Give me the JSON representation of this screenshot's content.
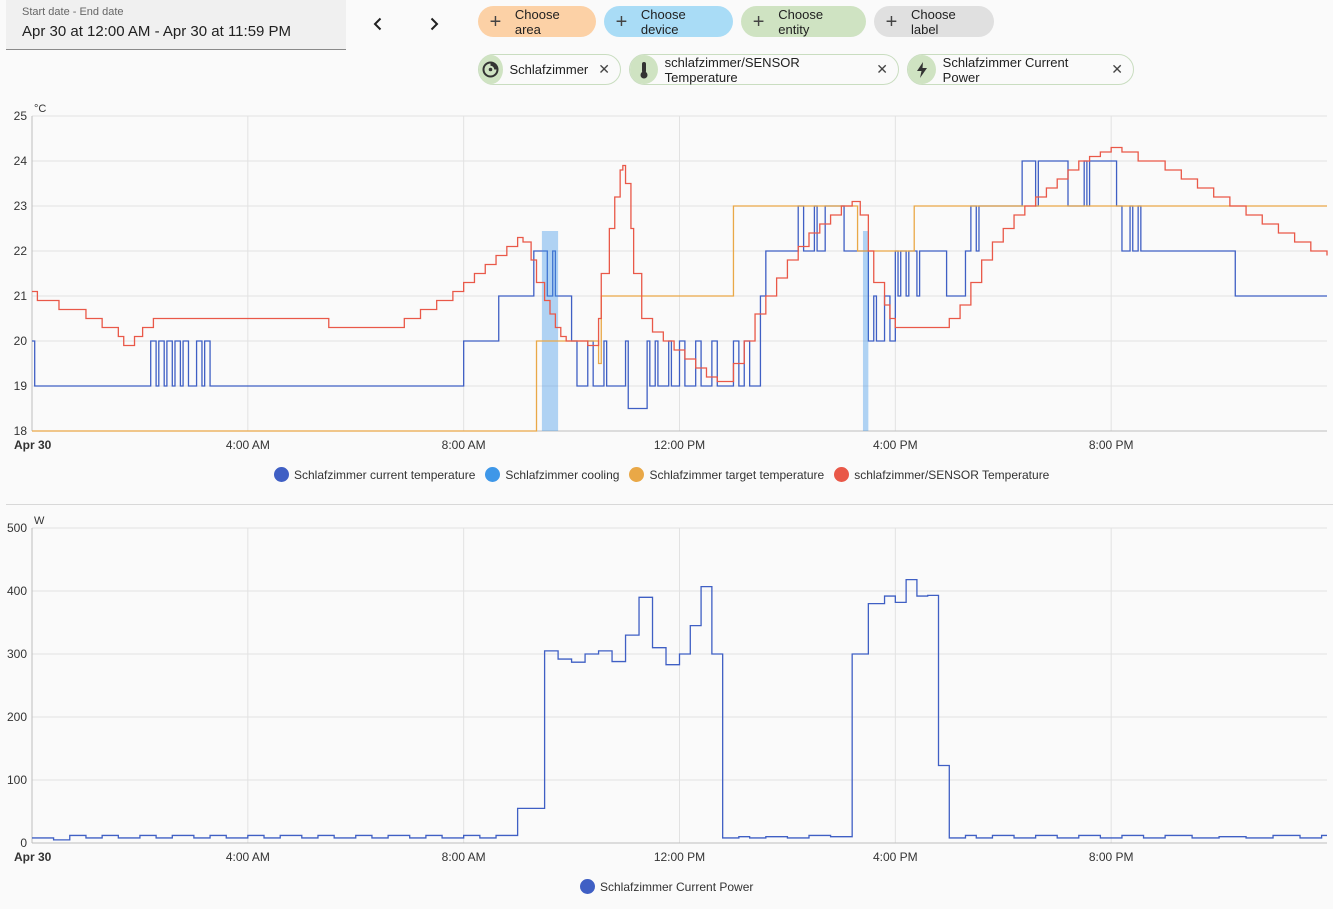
{
  "date_range": {
    "label": "Start date - End date",
    "value": "Apr 30 at 12:00 AM - Apr 30 at 11:59 PM"
  },
  "nav": {
    "prev_icon": "chevron-left-icon",
    "next_icon": "chevron-right-icon"
  },
  "choose_buttons": [
    {
      "label": "Choose area",
      "color": "#fcd1a6"
    },
    {
      "label": "Choose device",
      "color": "#a9dcf6"
    },
    {
      "label": "Choose entity",
      "color": "#cfe3c2"
    },
    {
      "label": "Choose label",
      "color": "#e0e0e0"
    }
  ],
  "selected_targets": [
    {
      "label": "Schlafzimmer",
      "icon": "thermostat-icon"
    },
    {
      "label": "schlafzimmer/SENSOR Temperature",
      "icon": "thermometer-icon"
    },
    {
      "label": "Schlafzimmer Current Power",
      "icon": "lightning-icon"
    }
  ],
  "chart_data": [
    {
      "type": "line",
      "title": "",
      "ylabel": "°C",
      "ylim": [
        18,
        25
      ],
      "xlim": [
        0,
        24
      ],
      "x_ticks": [
        "Apr 30",
        "4:00 AM",
        "8:00 AM",
        "12:00 PM",
        "4:00 PM",
        "8:00 PM"
      ],
      "x_tick_hours": [
        0,
        4,
        8,
        12,
        16,
        20
      ],
      "y_ticks": [
        18,
        19,
        20,
        21,
        22,
        23,
        24,
        25
      ],
      "grid": true,
      "legend_position": "bottom",
      "series": [
        {
          "name": "Schlafzimmer current temperature",
          "color": "#3f5fc4",
          "x": [
            0,
            0.05,
            2.15,
            2.2,
            2.3,
            2.35,
            2.45,
            2.5,
            2.6,
            2.65,
            2.75,
            2.8,
            2.9,
            3.0,
            3.05,
            3.15,
            3.2,
            3.3,
            3.35,
            7.9,
            8.0,
            8.6,
            8.65,
            8.75,
            9.2,
            9.3,
            9.5,
            9.55,
            9.65,
            9.7,
            10.0,
            10.1,
            10.3,
            10.4,
            10.6,
            10.65,
            11.0,
            11.05,
            11.4,
            11.45,
            11.55,
            11.6,
            11.8,
            11.85,
            12.0,
            12.1,
            12.3,
            12.4,
            12.6,
            12.7,
            13.0,
            13.1,
            13.2,
            13.3,
            13.5,
            13.6,
            13.75,
            14.2,
            14.3,
            14.5,
            14.55,
            14.7,
            14.75,
            15.0,
            15.05,
            15.5,
            15.6,
            15.65,
            15.8,
            15.9,
            16.0,
            16.05,
            16.1,
            16.2,
            16.25,
            16.4,
            16.45,
            16.9,
            16.95,
            17.3,
            17.4,
            17.5,
            17.55,
            18.3,
            18.35,
            18.6,
            18.65,
            18.9,
            19.1,
            19.2,
            19.5,
            19.55,
            19.6,
            19.7,
            20.1,
            20.2,
            20.35,
            20.4,
            20.5,
            20.55,
            22.2,
            22.3,
            24
          ],
          "y": [
            20,
            19,
            19,
            20,
            19,
            20,
            19,
            20,
            19,
            20,
            19,
            20,
            19,
            19,
            20,
            19,
            20,
            19,
            19,
            19,
            20,
            20,
            21,
            21,
            21,
            22,
            22,
            21,
            22,
            21,
            20,
            19,
            20,
            19,
            20,
            19,
            20,
            18.5,
            20,
            19,
            20,
            19,
            20,
            19,
            20,
            19,
            20,
            19,
            20,
            19,
            20,
            19,
            20,
            19,
            21,
            22,
            22,
            23,
            22,
            23,
            22,
            23,
            23,
            23,
            22,
            20,
            21,
            20,
            21,
            20,
            22,
            21,
            22,
            21,
            22,
            21,
            22,
            22,
            21,
            22,
            23,
            22,
            23,
            23,
            24,
            23,
            24,
            24,
            24,
            23,
            24,
            23,
            24,
            24,
            23,
            22,
            23,
            22,
            23,
            22,
            22,
            21,
            21
          ]
        },
        {
          "name": "Schlafzimmer cooling",
          "color": "#3e97e8",
          "bands": [
            [
              9.45,
              9.75
            ],
            [
              15.4,
              15.5
            ]
          ]
        },
        {
          "name": "Schlafzimmer target temperature",
          "color": "#e9a847",
          "x": [
            0,
            9.3,
            9.35,
            10.45,
            10.5,
            10.55,
            12.9,
            13.0,
            15.25,
            15.3,
            16.3,
            16.35,
            24
          ],
          "y": [
            18,
            18,
            20,
            20,
            19.5,
            21,
            21,
            23,
            23,
            22,
            22,
            23,
            23
          ]
        },
        {
          "name": "schlafzimmer/SENSOR Temperature",
          "color": "#e95848",
          "x": [
            0,
            0.1,
            0.5,
            1.0,
            1.3,
            1.6,
            1.7,
            1.9,
            2.05,
            2.25,
            2.4,
            2.7,
            3.0,
            4.0,
            5.0,
            5.5,
            6.0,
            6.5,
            6.9,
            7.2,
            7.5,
            7.8,
            8.0,
            8.2,
            8.4,
            8.6,
            8.8,
            9.0,
            9.1,
            9.25,
            9.35,
            9.5,
            9.6,
            9.7,
            9.8,
            9.9,
            10.1,
            10.3,
            10.5,
            10.55,
            10.7,
            10.8,
            10.9,
            10.95,
            11.0,
            11.1,
            11.15,
            11.3,
            11.5,
            11.7,
            11.9,
            12.1,
            12.3,
            12.5,
            12.7,
            12.9,
            13.0,
            13.2,
            13.4,
            13.6,
            13.8,
            14.0,
            14.2,
            14.4,
            14.6,
            14.8,
            15.0,
            15.2,
            15.35,
            15.5,
            15.6,
            15.8,
            15.9,
            16.0,
            16.5,
            17.0,
            17.2,
            17.4,
            17.6,
            17.8,
            18.0,
            18.2,
            18.4,
            18.6,
            18.8,
            19.0,
            19.2,
            19.4,
            19.6,
            19.8,
            20.0,
            20.2,
            20.5,
            21.0,
            21.3,
            21.6,
            21.9,
            22.2,
            22.5,
            22.8,
            23.1,
            23.4,
            23.7,
            24
          ],
          "y": [
            21.1,
            20.9,
            20.7,
            20.5,
            20.3,
            20.1,
            19.9,
            20.1,
            20.3,
            20.5,
            20.5,
            20.5,
            20.5,
            20.5,
            20.5,
            20.3,
            20.3,
            20.3,
            20.5,
            20.7,
            20.9,
            21.1,
            21.3,
            21.5,
            21.7,
            21.9,
            22.1,
            22.3,
            22.2,
            21.8,
            21.3,
            20.9,
            20.6,
            20.3,
            20.1,
            20.0,
            20.0,
            19.9,
            20.5,
            21.5,
            22.5,
            23.2,
            23.8,
            23.9,
            23.5,
            22.5,
            21.5,
            20.5,
            20.2,
            20.0,
            19.8,
            19.6,
            19.4,
            19.2,
            19.1,
            19.1,
            19.5,
            20.0,
            20.6,
            21.0,
            21.4,
            21.8,
            22.1,
            22.4,
            22.6,
            22.8,
            23.0,
            23.1,
            22.8,
            22.0,
            21.3,
            20.8,
            20.5,
            20.3,
            20.3,
            20.5,
            20.8,
            21.3,
            21.8,
            22.2,
            22.5,
            22.8,
            23.0,
            23.2,
            23.4,
            23.6,
            23.8,
            24.0,
            24.1,
            24.2,
            24.3,
            24.2,
            24.0,
            23.8,
            23.6,
            23.4,
            23.2,
            23.0,
            22.8,
            22.6,
            22.4,
            22.2,
            22.0,
            21.9
          ]
        }
      ]
    },
    {
      "type": "line",
      "title": "",
      "ylabel": "W",
      "ylim": [
        0,
        500
      ],
      "xlim": [
        0,
        24
      ],
      "x_ticks": [
        "Apr 30",
        "4:00 AM",
        "8:00 AM",
        "12:00 PM",
        "4:00 PM",
        "8:00 PM"
      ],
      "x_tick_hours": [
        0,
        4,
        8,
        12,
        16,
        20
      ],
      "y_ticks": [
        0,
        100,
        200,
        300,
        400,
        500
      ],
      "grid": true,
      "legend_position": "bottom",
      "series": [
        {
          "name": "Schlafzimmer Current Power",
          "color": "#3f5fc4",
          "x": [
            0,
            0.4,
            0.7,
            1.0,
            1.3,
            1.6,
            2.0,
            2.3,
            2.6,
            3.0,
            3.3,
            3.6,
            4.0,
            4.3,
            4.6,
            5.0,
            5.3,
            5.6,
            6.0,
            6.3,
            6.6,
            7.0,
            7.3,
            7.6,
            8.0,
            8.3,
            8.6,
            9.0,
            9.25,
            9.5,
            9.75,
            10.0,
            10.25,
            10.5,
            10.75,
            11.0,
            11.25,
            11.5,
            11.75,
            12.0,
            12.2,
            12.4,
            12.6,
            12.8,
            13.1,
            13.3,
            13.6,
            14.0,
            14.4,
            14.8,
            15.2,
            15.5,
            15.8,
            16.0,
            16.2,
            16.4,
            16.6,
            16.8,
            17.0,
            17.3,
            17.5,
            17.8,
            18.2,
            18.6,
            19.0,
            19.4,
            19.8,
            20.2,
            20.6,
            21.0,
            21.5,
            22.0,
            22.5,
            23.0,
            23.5,
            23.9,
            24
          ],
          "y": [
            8,
            5,
            12,
            8,
            12,
            8,
            12,
            8,
            12,
            8,
            12,
            8,
            12,
            8,
            12,
            8,
            12,
            8,
            12,
            8,
            12,
            8,
            12,
            8,
            12,
            8,
            12,
            55,
            55,
            305,
            292,
            287,
            300,
            305,
            288,
            330,
            390,
            310,
            283,
            300,
            345,
            407,
            300,
            8,
            10,
            8,
            10,
            8,
            12,
            10,
            300,
            380,
            392,
            382,
            418,
            392,
            393,
            123,
            8,
            12,
            8,
            12,
            8,
            12,
            8,
            12,
            8,
            12,
            8,
            12,
            8,
            10,
            8,
            12,
            8,
            12,
            12
          ]
        }
      ]
    }
  ]
}
